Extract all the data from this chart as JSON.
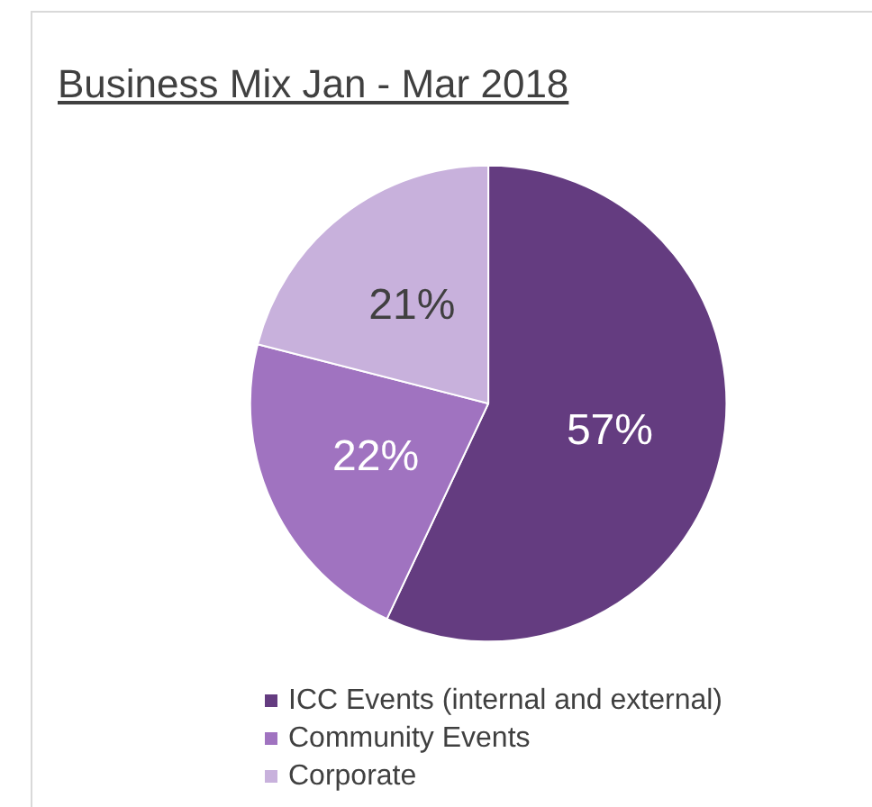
{
  "chart_data": {
    "type": "pie",
    "title": "Business Mix Jan - Mar 2018",
    "categories": [
      "ICC Events (internal and external)",
      "Community Events",
      "Corporate"
    ],
    "values": [
      57,
      22,
      21
    ],
    "colors": [
      "#643c80",
      "#a073c0",
      "#c8b1dc"
    ],
    "value_labels": [
      "57%",
      "22%",
      "21%"
    ],
    "legend": "bottom"
  }
}
